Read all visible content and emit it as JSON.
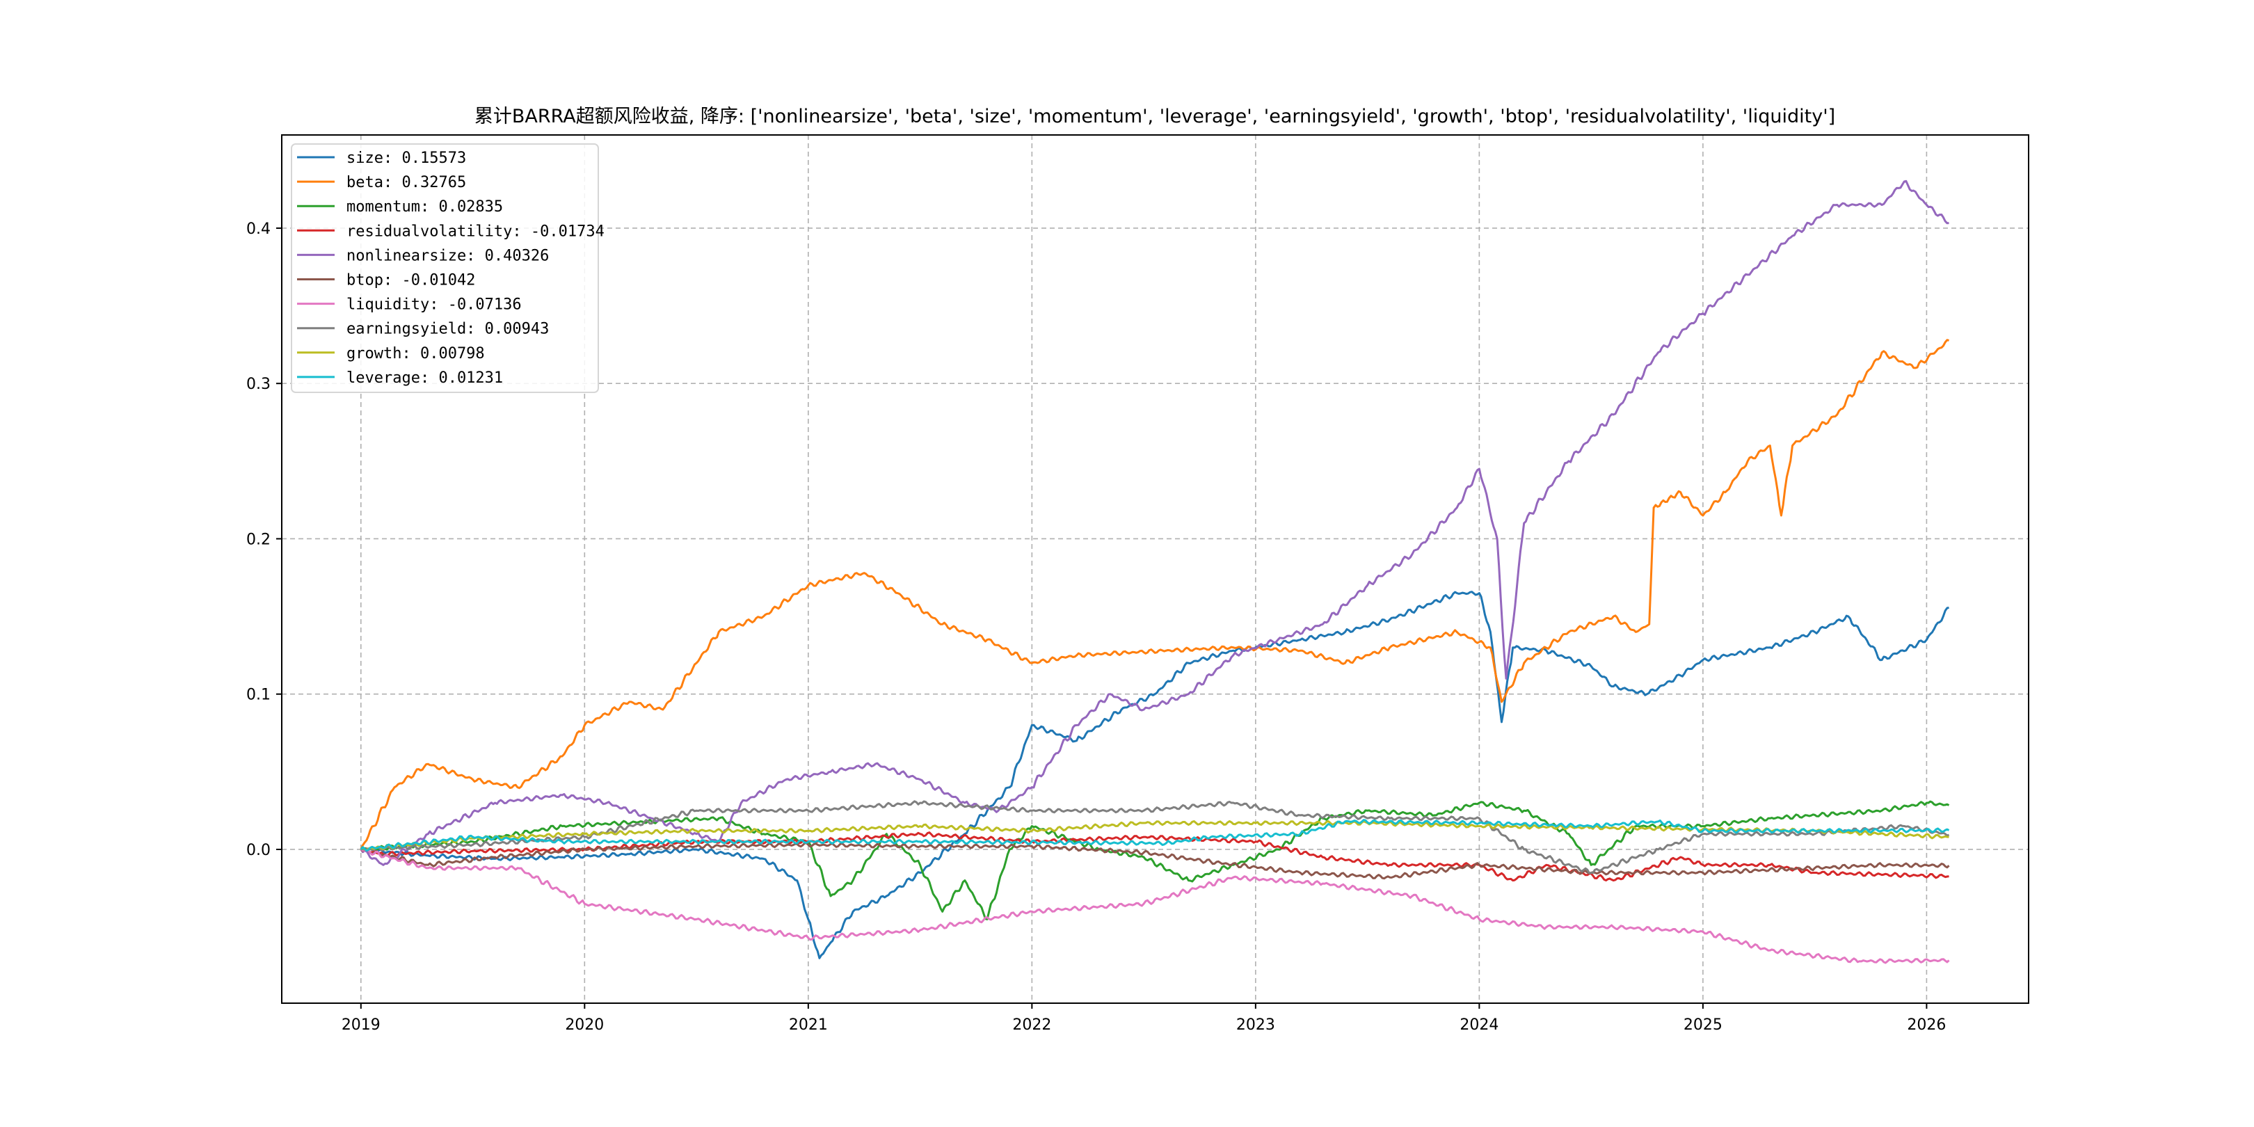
{
  "chart_data": {
    "type": "line",
    "title": "累计BARRA超额风险收益,  降序: ['nonlinearsize', 'beta', 'size', 'momentum', 'leverage', 'earningsyield', 'growth', 'btop', 'residualvolatility', 'liquidity']",
    "xlabel": "",
    "ylabel": "",
    "xlim": [
      2018.646,
      2026.456
    ],
    "ylim": [
      -0.099,
      0.46
    ],
    "x_ticks": [
      2019,
      2020,
      2021,
      2022,
      2023,
      2024,
      2025,
      2026
    ],
    "x_tick_labels": [
      "2019",
      "2020",
      "2021",
      "2022",
      "2023",
      "2024",
      "2025",
      "2026"
    ],
    "y_ticks": [
      0.0,
      0.1,
      0.2,
      0.3,
      0.4
    ],
    "y_tick_labels": [
      "0.0",
      "0.1",
      "0.2",
      "0.3",
      "0.4"
    ],
    "grid": true,
    "legend_position": "top-left",
    "series": [
      {
        "name": "size",
        "legend": "size: 0.15573",
        "color": "#1f77b4",
        "points": [
          [
            2019,
            0
          ],
          [
            2019.3,
            -0.004
          ],
          [
            2019.6,
            -0.006
          ],
          [
            2019.9,
            -0.005
          ],
          [
            2020.2,
            -0.003
          ],
          [
            2020.5,
            0.0
          ],
          [
            2020.8,
            -0.006
          ],
          [
            2020.95,
            -0.02
          ],
          [
            2021.0,
            -0.045
          ],
          [
            2021.05,
            -0.07
          ],
          [
            2021.1,
            -0.06
          ],
          [
            2021.2,
            -0.04
          ],
          [
            2021.35,
            -0.03
          ],
          [
            2021.5,
            -0.015
          ],
          [
            2021.7,
            0.01
          ],
          [
            2021.9,
            0.04
          ],
          [
            2022.0,
            0.08
          ],
          [
            2022.2,
            0.07
          ],
          [
            2022.4,
            0.09
          ],
          [
            2022.55,
            0.1
          ],
          [
            2022.7,
            0.12
          ],
          [
            2022.9,
            0.128
          ],
          [
            2023.0,
            0.13
          ],
          [
            2023.2,
            0.135
          ],
          [
            2023.4,
            0.14
          ],
          [
            2023.6,
            0.148
          ],
          [
            2023.9,
            0.165
          ],
          [
            2024.0,
            0.165
          ],
          [
            2024.05,
            0.14
          ],
          [
            2024.1,
            0.082
          ],
          [
            2024.15,
            0.13
          ],
          [
            2024.3,
            0.128
          ],
          [
            2024.5,
            0.118
          ],
          [
            2024.6,
            0.105
          ],
          [
            2024.75,
            0.1
          ],
          [
            2024.9,
            0.112
          ],
          [
            2025.0,
            0.122
          ],
          [
            2025.3,
            0.13
          ],
          [
            2025.5,
            0.14
          ],
          [
            2025.65,
            0.15
          ],
          [
            2025.8,
            0.122
          ],
          [
            2026.0,
            0.135
          ],
          [
            2026.1,
            0.1557
          ]
        ]
      },
      {
        "name": "beta",
        "legend": "beta: 0.32765",
        "color": "#ff7f0e",
        "points": [
          [
            2019,
            0
          ],
          [
            2019.15,
            0.04
          ],
          [
            2019.3,
            0.055
          ],
          [
            2019.5,
            0.045
          ],
          [
            2019.7,
            0.04
          ],
          [
            2019.9,
            0.06
          ],
          [
            2020.0,
            0.08
          ],
          [
            2020.2,
            0.095
          ],
          [
            2020.35,
            0.09
          ],
          [
            2020.5,
            0.12
          ],
          [
            2020.6,
            0.14
          ],
          [
            2020.8,
            0.15
          ],
          [
            2021.0,
            0.17
          ],
          [
            2021.25,
            0.178
          ],
          [
            2021.4,
            0.165
          ],
          [
            2021.6,
            0.145
          ],
          [
            2021.8,
            0.135
          ],
          [
            2022.0,
            0.12
          ],
          [
            2022.2,
            0.125
          ],
          [
            2022.6,
            0.128
          ],
          [
            2022.9,
            0.13
          ],
          [
            2023.2,
            0.128
          ],
          [
            2023.4,
            0.12
          ],
          [
            2023.6,
            0.13
          ],
          [
            2023.9,
            0.14
          ],
          [
            2024.05,
            0.13
          ],
          [
            2024.1,
            0.095
          ],
          [
            2024.2,
            0.12
          ],
          [
            2024.4,
            0.14
          ],
          [
            2024.6,
            0.15
          ],
          [
            2024.7,
            0.14
          ],
          [
            2024.76,
            0.145
          ],
          [
            2024.78,
            0.22
          ],
          [
            2024.9,
            0.23
          ],
          [
            2025.0,
            0.215
          ],
          [
            2025.1,
            0.23
          ],
          [
            2025.2,
            0.25
          ],
          [
            2025.3,
            0.26
          ],
          [
            2025.35,
            0.215
          ],
          [
            2025.4,
            0.26
          ],
          [
            2025.6,
            0.28
          ],
          [
            2025.8,
            0.32
          ],
          [
            2025.95,
            0.31
          ],
          [
            2026.1,
            0.3277
          ]
        ]
      },
      {
        "name": "momentum",
        "legend": "momentum: 0.02835",
        "color": "#2ca02c",
        "points": [
          [
            2019,
            0
          ],
          [
            2019.5,
            0.005
          ],
          [
            2019.9,
            0.015
          ],
          [
            2020.3,
            0.018
          ],
          [
            2020.6,
            0.02
          ],
          [
            2020.8,
            0.01
          ],
          [
            2021.0,
            0.005
          ],
          [
            2021.1,
            -0.03
          ],
          [
            2021.2,
            -0.02
          ],
          [
            2021.35,
            0.01
          ],
          [
            2021.5,
            -0.01
          ],
          [
            2021.6,
            -0.04
          ],
          [
            2021.7,
            -0.02
          ],
          [
            2021.8,
            -0.045
          ],
          [
            2021.9,
            0.0
          ],
          [
            2022.0,
            0.015
          ],
          [
            2022.3,
            0.0
          ],
          [
            2022.5,
            -0.005
          ],
          [
            2022.7,
            -0.02
          ],
          [
            2022.9,
            -0.01
          ],
          [
            2023.1,
            0.0
          ],
          [
            2023.3,
            0.02
          ],
          [
            2023.5,
            0.025
          ],
          [
            2023.8,
            0.022
          ],
          [
            2024.0,
            0.03
          ],
          [
            2024.2,
            0.025
          ],
          [
            2024.4,
            0.01
          ],
          [
            2024.5,
            -0.01
          ],
          [
            2024.7,
            0.015
          ],
          [
            2025.0,
            0.015
          ],
          [
            2025.3,
            0.02
          ],
          [
            2025.8,
            0.025
          ],
          [
            2026.0,
            0.03
          ],
          [
            2026.1,
            0.0284
          ]
        ]
      },
      {
        "name": "residualvolatility",
        "legend": "residualvolatility: -0.01734",
        "color": "#d62728",
        "points": [
          [
            2019,
            0
          ],
          [
            2019.1,
            -0.003
          ],
          [
            2019.5,
            -0.001
          ],
          [
            2020.0,
            0.0
          ],
          [
            2020.5,
            0.005
          ],
          [
            2021.0,
            0.005
          ],
          [
            2021.5,
            0.01
          ],
          [
            2022.0,
            0.005
          ],
          [
            2022.5,
            0.008
          ],
          [
            2023.0,
            0.005
          ],
          [
            2023.3,
            -0.005
          ],
          [
            2023.6,
            -0.01
          ],
          [
            2024.0,
            -0.01
          ],
          [
            2024.15,
            -0.02
          ],
          [
            2024.3,
            -0.01
          ],
          [
            2024.6,
            -0.02
          ],
          [
            2024.9,
            -0.005
          ],
          [
            2025.0,
            -0.01
          ],
          [
            2025.3,
            -0.01
          ],
          [
            2025.5,
            -0.015
          ],
          [
            2026.1,
            -0.0173
          ]
        ]
      },
      {
        "name": "nonlinearsize",
        "legend": "nonlinearsize: 0.40326",
        "color": "#9467bd",
        "points": [
          [
            2019,
            0
          ],
          [
            2019.1,
            -0.01
          ],
          [
            2019.3,
            0.01
          ],
          [
            2019.6,
            0.03
          ],
          [
            2019.9,
            0.035
          ],
          [
            2020.1,
            0.03
          ],
          [
            2020.3,
            0.02
          ],
          [
            2020.5,
            0.01
          ],
          [
            2020.6,
            0.005
          ],
          [
            2020.7,
            0.03
          ],
          [
            2020.9,
            0.045
          ],
          [
            2021.1,
            0.05
          ],
          [
            2021.3,
            0.055
          ],
          [
            2021.5,
            0.045
          ],
          [
            2021.7,
            0.03
          ],
          [
            2021.85,
            0.025
          ],
          [
            2022.0,
            0.04
          ],
          [
            2022.2,
            0.08
          ],
          [
            2022.35,
            0.1
          ],
          [
            2022.5,
            0.09
          ],
          [
            2022.7,
            0.1
          ],
          [
            2022.9,
            0.125
          ],
          [
            2023.1,
            0.135
          ],
          [
            2023.3,
            0.145
          ],
          [
            2023.5,
            0.17
          ],
          [
            2023.7,
            0.19
          ],
          [
            2023.9,
            0.22
          ],
          [
            2024.0,
            0.245
          ],
          [
            2024.08,
            0.2
          ],
          [
            2024.12,
            0.11
          ],
          [
            2024.2,
            0.21
          ],
          [
            2024.4,
            0.25
          ],
          [
            2024.6,
            0.28
          ],
          [
            2024.8,
            0.32
          ],
          [
            2025.0,
            0.345
          ],
          [
            2025.2,
            0.37
          ],
          [
            2025.4,
            0.395
          ],
          [
            2025.6,
            0.415
          ],
          [
            2025.8,
            0.415
          ],
          [
            2025.9,
            0.43
          ],
          [
            2026.0,
            0.415
          ],
          [
            2026.1,
            0.4033
          ]
        ]
      },
      {
        "name": "btop",
        "legend": "btop: -0.01042",
        "color": "#8c564b",
        "points": [
          [
            2019,
            0
          ],
          [
            2019.3,
            -0.01
          ],
          [
            2019.6,
            -0.005
          ],
          [
            2020.0,
            0.0
          ],
          [
            2020.5,
            0.002
          ],
          [
            2021.0,
            0.003
          ],
          [
            2021.5,
            0.002
          ],
          [
            2022.0,
            0.002
          ],
          [
            2022.5,
            -0.002
          ],
          [
            2022.8,
            -0.008
          ],
          [
            2023.2,
            -0.015
          ],
          [
            2023.6,
            -0.018
          ],
          [
            2024.0,
            -0.01
          ],
          [
            2024.5,
            -0.015
          ],
          [
            2025.0,
            -0.015
          ],
          [
            2025.5,
            -0.012
          ],
          [
            2025.8,
            -0.01
          ],
          [
            2026.1,
            -0.0104
          ]
        ]
      },
      {
        "name": "liquidity",
        "legend": "liquidity: -0.07136",
        "color": "#e377c2",
        "points": [
          [
            2019,
            0
          ],
          [
            2019.3,
            -0.012
          ],
          [
            2019.7,
            -0.012
          ],
          [
            2020.0,
            -0.035
          ],
          [
            2020.5,
            -0.045
          ],
          [
            2021.0,
            -0.057
          ],
          [
            2021.5,
            -0.052
          ],
          [
            2022.0,
            -0.04
          ],
          [
            2022.5,
            -0.035
          ],
          [
            2022.9,
            -0.018
          ],
          [
            2023.3,
            -0.022
          ],
          [
            2023.7,
            -0.03
          ],
          [
            2024.0,
            -0.045
          ],
          [
            2024.3,
            -0.05
          ],
          [
            2024.6,
            -0.05
          ],
          [
            2025.0,
            -0.053
          ],
          [
            2025.3,
            -0.065
          ],
          [
            2025.7,
            -0.072
          ],
          [
            2026.1,
            -0.0714
          ]
        ]
      },
      {
        "name": "earningsyield",
        "legend": "earningsyield: 0.00943",
        "color": "#7f7f7f",
        "points": [
          [
            2019,
            0
          ],
          [
            2019.5,
            0.003
          ],
          [
            2020.0,
            0.008
          ],
          [
            2020.5,
            0.025
          ],
          [
            2021.0,
            0.025
          ],
          [
            2021.5,
            0.03
          ],
          [
            2022.0,
            0.025
          ],
          [
            2022.5,
            0.025
          ],
          [
            2022.9,
            0.03
          ],
          [
            2023.2,
            0.022
          ],
          [
            2023.6,
            0.02
          ],
          [
            2024.0,
            0.02
          ],
          [
            2024.2,
            0.0
          ],
          [
            2024.5,
            -0.015
          ],
          [
            2024.8,
            0.0
          ],
          [
            2025.0,
            0.01
          ],
          [
            2025.5,
            0.01
          ],
          [
            2025.9,
            0.015
          ],
          [
            2026.1,
            0.0094
          ]
        ]
      },
      {
        "name": "growth",
        "legend": "growth: 0.00798",
        "color": "#bcbd22",
        "points": [
          [
            2019,
            0
          ],
          [
            2019.5,
            0.007
          ],
          [
            2020.0,
            0.01
          ],
          [
            2020.5,
            0.012
          ],
          [
            2021.0,
            0.012
          ],
          [
            2021.5,
            0.015
          ],
          [
            2022.0,
            0.012
          ],
          [
            2022.5,
            0.017
          ],
          [
            2023.0,
            0.017
          ],
          [
            2023.5,
            0.017
          ],
          [
            2024.0,
            0.015
          ],
          [
            2024.5,
            0.014
          ],
          [
            2025.0,
            0.013
          ],
          [
            2025.5,
            0.012
          ],
          [
            2026.1,
            0.008
          ]
        ]
      },
      {
        "name": "leverage",
        "legend": "leverage: 0.01231",
        "color": "#17becf",
        "points": [
          [
            2019,
            0
          ],
          [
            2019.5,
            0.008
          ],
          [
            2019.9,
            0.005
          ],
          [
            2020.5,
            0.005
          ],
          [
            2021.5,
            0.005
          ],
          [
            2022.6,
            0.004
          ],
          [
            2022.8,
            0.008
          ],
          [
            2023.2,
            0.01
          ],
          [
            2023.4,
            0.018
          ],
          [
            2024.0,
            0.017
          ],
          [
            2024.5,
            0.015
          ],
          [
            2024.8,
            0.018
          ],
          [
            2025.0,
            0.012
          ],
          [
            2025.5,
            0.012
          ],
          [
            2026.1,
            0.0123
          ]
        ]
      }
    ]
  }
}
